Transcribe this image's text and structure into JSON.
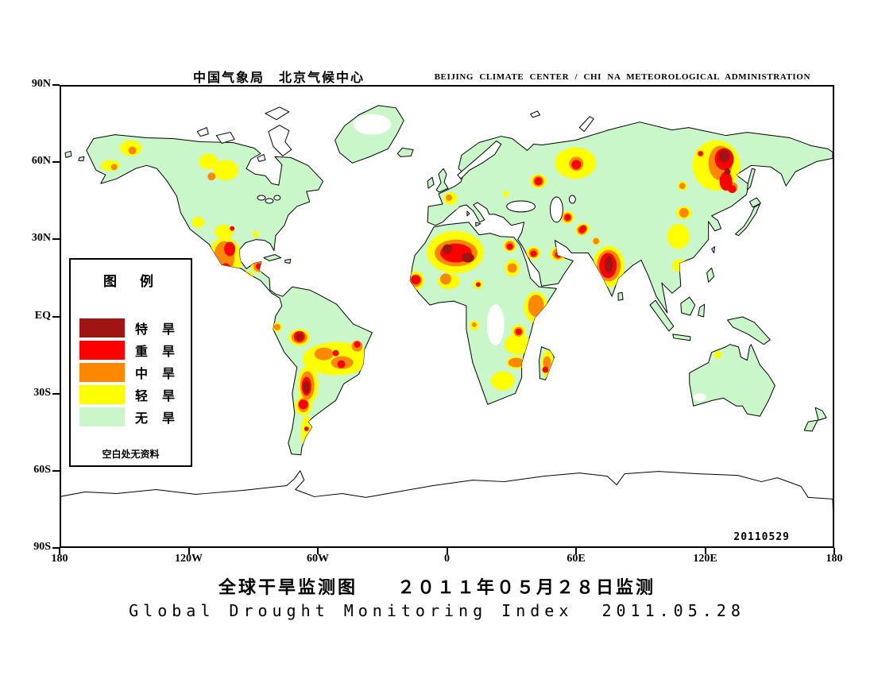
{
  "header": {
    "left": "中国气象局　北京气候中心",
    "right": "BEIJING CLIMATE CENTER / CHI NA METEOROLOGICAL ADMINISTRATION"
  },
  "map": {
    "date_stamp": "20110529",
    "lat_labels": [
      "90N",
      "60N",
      "30N",
      "EQ",
      "30S",
      "60S",
      "90S"
    ],
    "lon_labels": [
      "180",
      "120W",
      "60W",
      "0",
      "60E",
      "120E",
      "180"
    ]
  },
  "legend": {
    "title": "图　例",
    "note": "空白处无资料",
    "items": [
      {
        "key": "extreme",
        "label": "特　旱",
        "color": "#A01414"
      },
      {
        "key": "severe",
        "label": "重　旱",
        "color": "#FF0000"
      },
      {
        "key": "moderate",
        "label": "中　旱",
        "color": "#FF8800"
      },
      {
        "key": "light",
        "label": "轻　旱",
        "color": "#FFFF00"
      },
      {
        "key": "none",
        "label": "无　旱",
        "color": "#C9F7C9"
      }
    ]
  },
  "titles": {
    "chinese": "全球干旱监测图　　２０１１年０５月２８日监测",
    "english": "Global Drought Monitoring Index  2011.05.28"
  }
}
